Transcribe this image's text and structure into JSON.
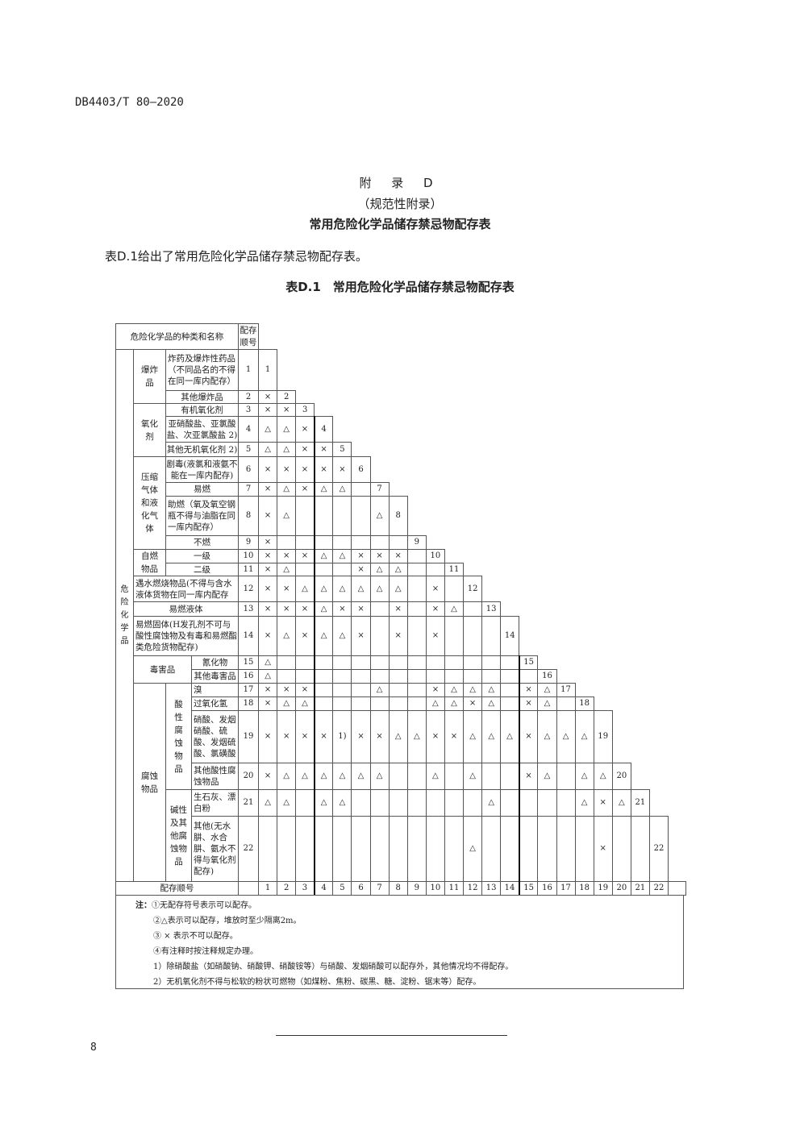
{
  "header": {
    "doc_id": "DB4403/T 80—2020"
  },
  "appendix": {
    "label": "附 录 D",
    "type": "（规范性附录）",
    "title": "常用危险化学品储存禁忌物配存表"
  },
  "intro": "表D.1给出了常用危险化学品储存禁忌物配存表。",
  "table_caption": "表D.1　常用危险化学品储存禁忌物配存表",
  "table": {
    "header_name": "危险化学品的种类和名称",
    "header_seq": "配存顺号",
    "group_main": "危险化学品",
    "groups": {
      "explosives": "爆炸品",
      "oxidizers": "氧化剂",
      "gases": "压缩气体和液化气体",
      "spontaneous": "自燃物品",
      "toxic": "毒害品",
      "corrosive": "腐蚀物品",
      "acidic": "酸性腐蚀物品",
      "alkaline": "碱性及其他腐蚀物品"
    },
    "rows": [
      {
        "seq": "1",
        "name": "炸药及爆炸性药品（不同品名的不得在同一库内配存）",
        "marks": []
      },
      {
        "seq": "2",
        "name": "其他爆炸品",
        "marks": [
          "×"
        ]
      },
      {
        "seq": "3",
        "name": "有机氧化剂",
        "marks": [
          "×",
          "×"
        ]
      },
      {
        "seq": "4",
        "name": "亚硝酸盐、亚氯酸盐、次亚氯酸盐 2)",
        "marks": [
          "△",
          "△",
          "×"
        ]
      },
      {
        "seq": "5",
        "name": "其他无机氧化剂 2)",
        "marks": [
          "△",
          "△",
          "×",
          "×"
        ]
      },
      {
        "seq": "6",
        "name": "剧毒(液氯和液氨不能在一库内配存)",
        "marks": [
          "×",
          "×",
          "×",
          "×",
          "×"
        ]
      },
      {
        "seq": "7",
        "name": "易燃",
        "marks": [
          "×",
          "△",
          "×",
          "△",
          "△",
          ""
        ]
      },
      {
        "seq": "8",
        "name": "助燃（氧及氧空钢瓶不得与油脂在同一库内配存）",
        "marks": [
          "×",
          "△",
          "",
          "",
          "",
          "",
          "△"
        ]
      },
      {
        "seq": "9",
        "name": "不燃",
        "marks": [
          "×",
          "",
          "",
          "",
          "",
          "",
          "",
          ""
        ]
      },
      {
        "seq": "10",
        "name": "一级",
        "marks": [
          "×",
          "×",
          "×",
          "△",
          "△",
          "×",
          "×",
          "×",
          ""
        ]
      },
      {
        "seq": "11",
        "name": "二级",
        "marks": [
          "×",
          "△",
          "",
          "",
          "",
          "×",
          "△",
          "△",
          "",
          ""
        ]
      },
      {
        "seq": "12",
        "name": "遇水燃烧物品(不得与含水液体货物在同一库内配存",
        "marks": [
          "×",
          "×",
          "△",
          "△",
          "△",
          "△",
          "△",
          "△",
          "",
          "×",
          ""
        ]
      },
      {
        "seq": "13",
        "name": "易燃液体",
        "marks": [
          "×",
          "×",
          "×",
          "△",
          "×",
          "×",
          "",
          "×",
          "",
          "×",
          "△",
          ""
        ]
      },
      {
        "seq": "14",
        "name": "易燃固体(H发孔剂不可与酸性腐蚀物及有毒和易燃酯类危险货物配存)",
        "marks": [
          "×",
          "△",
          "×",
          "△",
          "△",
          "×",
          "",
          "×",
          "",
          "×",
          "",
          "",
          ""
        ]
      },
      {
        "seq": "15",
        "name": "氰化物",
        "marks": [
          "△",
          "",
          "",
          "",
          "",
          "",
          "",
          "",
          "",
          "",
          "",
          "",
          "",
          ""
        ]
      },
      {
        "seq": "16",
        "name": "其他毒害品",
        "marks": [
          "△",
          "",
          "",
          "",
          "",
          "",
          "",
          "",
          "",
          "",
          "",
          "",
          "",
          "",
          ""
        ]
      },
      {
        "seq": "17",
        "name": "溴",
        "marks": [
          "×",
          "×",
          "×",
          "",
          "",
          "",
          "△",
          "",
          "",
          "×",
          "△",
          "△",
          "△",
          "",
          "×",
          "△"
        ]
      },
      {
        "seq": "18",
        "name": "过氧化氢",
        "marks": [
          "×",
          "△",
          "△",
          "",
          "",
          "",
          "",
          "",
          "",
          "△",
          "△",
          "×",
          "△",
          "",
          "×",
          "△",
          ""
        ]
      },
      {
        "seq": "19",
        "name": "硝酸、发烟硝酸、硫酸、发烟硫酸、氯磺酸",
        "marks": [
          "×",
          "×",
          "×",
          "×",
          "1)",
          "×",
          "×",
          "△",
          "△",
          "×",
          "×",
          "△",
          "△",
          "△",
          "×",
          "△",
          "△",
          "△"
        ]
      },
      {
        "seq": "20",
        "name": "其他酸性腐蚀物品",
        "marks": [
          "×",
          "△",
          "△",
          "△",
          "△",
          "△",
          "△",
          "",
          "",
          "△",
          "",
          "△",
          "",
          "",
          "×",
          "△",
          "",
          "△",
          "△"
        ]
      },
      {
        "seq": "21",
        "name": "生石灰、漂白粉",
        "marks": [
          "△",
          "△",
          "",
          "△",
          "△",
          "",
          "",
          "",
          "",
          "",
          "",
          "",
          "△",
          "",
          "",
          "",
          "",
          "△",
          "×",
          "△"
        ]
      },
      {
        "seq": "22",
        "name": "其他(无水肼、水合肼、氨水不得与氧化剂配存)",
        "marks": [
          "",
          "",
          "",
          "",
          "",
          "",
          "",
          "",
          "",
          "",
          "",
          "△",
          "",
          "",
          "",
          "",
          "",
          "",
          "×",
          "",
          ""
        ]
      }
    ],
    "footer_label": "配存顺号",
    "footer_numbers": [
      "1",
      "2",
      "3",
      "4",
      "5",
      "6",
      "7",
      "8",
      "9",
      "10",
      "11",
      "12",
      "13",
      "14",
      "15",
      "16",
      "17",
      "18",
      "19",
      "20",
      "21",
      "22"
    ]
  },
  "notes": {
    "label": "注：",
    "items": [
      "①无配存符号表示可以配存。",
      "②△表示可以配存，堆放时至少隔离2m。",
      "③ × 表示不可以配存。",
      "④有注释时按注释规定办理。",
      "1）除硝酸盐（如硝酸钠、硝酸钾、硝酸铵等）与硝酸、发烟硝酸可以配存外，其他情况均不得配存。",
      "2）无机氧化剂不得与松软的粉状可燃物（如煤粉、焦粉、碳黑、糖、淀粉、锯末等）配存。"
    ]
  },
  "page_number": "8"
}
